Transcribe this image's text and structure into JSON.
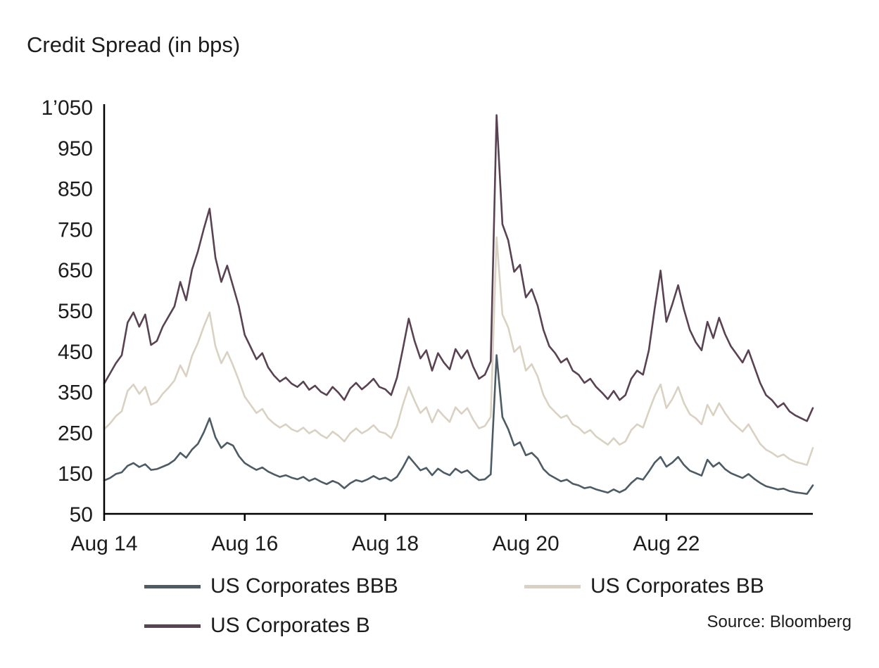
{
  "title": "Credit Spread (in bps)",
  "source": "Source: Bloomberg",
  "legend": [
    {
      "label": "US Corporates BBB",
      "color": "#4c5b64"
    },
    {
      "label": "US Corporates BB",
      "color": "#d9d2c3"
    },
    {
      "label": "US Corporates B",
      "color": "#594251"
    }
  ],
  "chart_data": {
    "type": "line",
    "title": "Credit Spread (in bps)",
    "ylabel": "Credit Spread (in bps)",
    "ylim": [
      50,
      1050
    ],
    "ytick_step": 100,
    "ytick_labels": [
      "50",
      "150",
      "250",
      "350",
      "450",
      "550",
      "650",
      "750",
      "850",
      "950",
      "1’050"
    ],
    "x_unit": "month",
    "x_start": "2014-08",
    "x_end": "2024-09",
    "xtick_labels": [
      "Aug 14",
      "Aug 16",
      "Aug 18",
      "Aug 20",
      "Aug 22"
    ],
    "xtick_month_index": [
      0,
      24,
      48,
      72,
      96
    ],
    "grid": false,
    "legend_position": "bottom",
    "series": [
      {
        "name": "US Corporates BBB",
        "color": "#4c5b64",
        "values": [
          132,
          138,
          148,
          152,
          168,
          175,
          165,
          172,
          158,
          160,
          166,
          172,
          182,
          200,
          188,
          208,
          222,
          250,
          285,
          238,
          212,
          225,
          218,
          192,
          175,
          166,
          158,
          164,
          154,
          147,
          141,
          145,
          139,
          135,
          141,
          131,
          137,
          129,
          123,
          131,
          125,
          113,
          125,
          133,
          129,
          135,
          143,
          135,
          139,
          131,
          141,
          164,
          191,
          174,
          157,
          163,
          145,
          161,
          151,
          145,
          161,
          151,
          157,
          143,
          133,
          135,
          147,
          440,
          288,
          258,
          218,
          226,
          194,
          200,
          186,
          160,
          146,
          138,
          130,
          134,
          124,
          120,
          113,
          116,
          110,
          106,
          102,
          110,
          103,
          110,
          126,
          138,
          134,
          154,
          176,
          190,
          166,
          176,
          190,
          170,
          156,
          150,
          144,
          183,
          166,
          176,
          160,
          150,
          144,
          138,
          148,
          136,
          126,
          118,
          114,
          110,
          112,
          106,
          103,
          101,
          99,
          120
        ]
      },
      {
        "name": "US Corporates BB",
        "color": "#d9d2c3",
        "values": [
          258,
          272,
          290,
          302,
          352,
          368,
          345,
          362,
          318,
          325,
          345,
          360,
          378,
          415,
          388,
          438,
          470,
          510,
          545,
          462,
          420,
          448,
          415,
          378,
          338,
          318,
          298,
          308,
          285,
          272,
          262,
          270,
          258,
          252,
          262,
          248,
          256,
          244,
          236,
          252,
          242,
          228,
          248,
          260,
          248,
          256,
          268,
          252,
          248,
          236,
          266,
          318,
          362,
          328,
          298,
          312,
          275,
          306,
          290,
          276,
          312,
          296,
          310,
          282,
          260,
          266,
          288,
          730,
          540,
          508,
          448,
          462,
          402,
          418,
          388,
          342,
          315,
          300,
          286,
          292,
          270,
          262,
          248,
          256,
          240,
          230,
          220,
          236,
          220,
          228,
          256,
          270,
          262,
          302,
          340,
          368,
          310,
          332,
          362,
          322,
          295,
          285,
          270,
          318,
          292,
          322,
          298,
          278,
          265,
          252,
          270,
          246,
          222,
          208,
          200,
          190,
          196,
          185,
          178,
          174,
          170,
          212
        ]
      },
      {
        "name": "US Corporates B",
        "color": "#594251",
        "values": [
          370,
          395,
          420,
          440,
          520,
          545,
          510,
          540,
          465,
          475,
          510,
          535,
          560,
          620,
          575,
          650,
          695,
          750,
          800,
          680,
          620,
          660,
          610,
          560,
          490,
          460,
          430,
          445,
          410,
          390,
          375,
          385,
          370,
          362,
          375,
          355,
          365,
          350,
          342,
          362,
          348,
          330,
          358,
          372,
          356,
          368,
          382,
          362,
          356,
          342,
          385,
          455,
          530,
          475,
          432,
          452,
          402,
          445,
          422,
          405,
          455,
          432,
          452,
          412,
          382,
          392,
          425,
          1030,
          762,
          722,
          645,
          662,
          582,
          602,
          562,
          502,
          462,
          445,
          422,
          432,
          402,
          392,
          372,
          382,
          362,
          348,
          332,
          352,
          330,
          342,
          382,
          402,
          392,
          452,
          555,
          648,
          522,
          565,
          612,
          552,
          502,
          472,
          452,
          522,
          482,
          532,
          492,
          462,
          442,
          422,
          452,
          412,
          372,
          342,
          330,
          312,
          322,
          302,
          292,
          285,
          278,
          310
        ]
      }
    ]
  }
}
